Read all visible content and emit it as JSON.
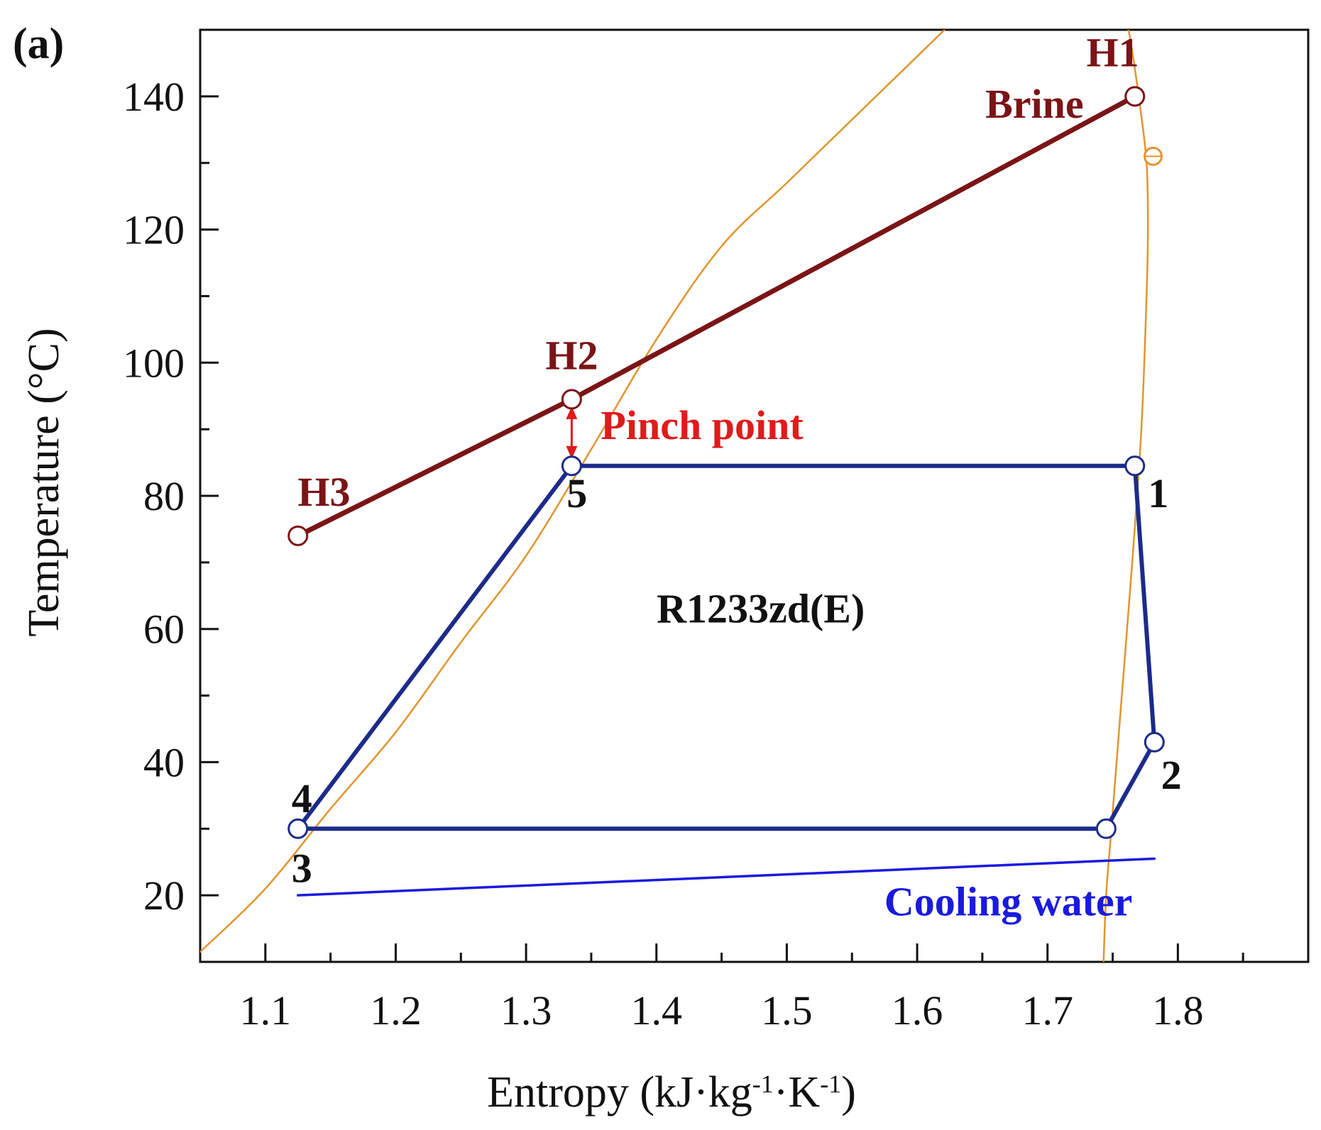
{
  "chart_data": {
    "type": "line",
    "panel_label": "(a)",
    "xlabel": "Entropy (kJ·kg-1·K-1)",
    "xlabel_parts": {
      "prefix": "Entropy (kJ·kg",
      "exp1": "-1",
      "mid": "·K",
      "exp2": "-1",
      "suffix": ")"
    },
    "ylabel": "Temperature (°C)",
    "xlim": [
      1.05,
      1.9
    ],
    "ylim": [
      10,
      150
    ],
    "xticks": [
      1.1,
      1.2,
      1.3,
      1.4,
      1.5,
      1.6,
      1.7,
      1.8
    ],
    "xtick_labels": [
      "1.1",
      "1.2",
      "1.3",
      "1.4",
      "1.5",
      "1.6",
      "1.7",
      "1.8"
    ],
    "xminor": [
      1.15,
      1.25,
      1.35,
      1.45,
      1.55,
      1.65,
      1.75,
      1.85
    ],
    "yticks": [
      20,
      40,
      60,
      80,
      100,
      120,
      140
    ],
    "ytick_labels": [
      "20",
      "40",
      "60",
      "80",
      "100",
      "120",
      "140"
    ],
    "yminor": [
      30,
      50,
      70,
      90,
      110,
      130
    ],
    "series": [
      {
        "name": "saturation-liquid",
        "color": "#e0952f",
        "points": [
          [
            1.05,
            11.5
          ],
          [
            1.1,
            21
          ],
          [
            1.15,
            33
          ],
          [
            1.2,
            44.5
          ],
          [
            1.25,
            58
          ],
          [
            1.3,
            71
          ],
          [
            1.35,
            87
          ],
          [
            1.4,
            103.5
          ],
          [
            1.45,
            117.5
          ],
          [
            1.5,
            127
          ],
          [
            1.55,
            136.5
          ],
          [
            1.6,
            146
          ],
          [
            1.621,
            150
          ]
        ]
      },
      {
        "name": "saturation-vapor",
        "color": "#e0952f",
        "points": [
          [
            1.743,
            10
          ],
          [
            1.745,
            20
          ],
          [
            1.749,
            30
          ],
          [
            1.757,
            50
          ],
          [
            1.765,
            70
          ],
          [
            1.772,
            90
          ],
          [
            1.776,
            110
          ],
          [
            1.777,
            120
          ],
          [
            1.776,
            130
          ],
          [
            1.77,
            140
          ],
          [
            1.764,
            148
          ],
          [
            1.762,
            150
          ]
        ]
      },
      {
        "name": "Brine",
        "color": "#7b1416",
        "points": [
          [
            1.125,
            74
          ],
          [
            1.335,
            94.5
          ],
          [
            1.767,
            140
          ]
        ]
      },
      {
        "name": "R1233zd(E)",
        "color": "#1c2b8a",
        "points": [
          [
            1.767,
            84.5
          ],
          [
            1.335,
            84.5
          ],
          [
            1.125,
            30
          ],
          [
            1.745,
            30
          ],
          [
            1.782,
            43
          ],
          [
            1.767,
            84.5
          ]
        ]
      },
      {
        "name": "Cooling water",
        "color": "#1a1adf",
        "points": [
          [
            1.125,
            20
          ],
          [
            1.782,
            25.5
          ]
        ]
      }
    ],
    "markers": [
      {
        "name": "H1",
        "x": 1.767,
        "y": 140,
        "color": "#7b1416"
      },
      {
        "name": "H2",
        "x": 1.335,
        "y": 94.5,
        "color": "#7b1416"
      },
      {
        "name": "H3",
        "x": 1.125,
        "y": 74,
        "color": "#7b1416"
      },
      {
        "name": "1",
        "x": 1.767,
        "y": 84.5,
        "color": "#1c2b8a"
      },
      {
        "name": "2",
        "x": 1.782,
        "y": 43,
        "color": "#1c2b8a"
      },
      {
        "name": "3-4",
        "x": 1.125,
        "y": 30,
        "color": "#1c2b8a"
      },
      {
        "name": "5",
        "x": 1.335,
        "y": 84.5,
        "color": "#1c2b8a"
      },
      {
        "name": "vapor-start",
        "x": 1.745,
        "y": 30,
        "color": "#1c2b8a"
      },
      {
        "name": "critical-point",
        "x": 1.781,
        "y": 131,
        "color": "#e0952f"
      }
    ],
    "annotations": [
      {
        "text": "H1",
        "x": 1.75,
        "y": 144.5,
        "color": "#7b1416"
      },
      {
        "text": "Brine",
        "x": 1.69,
        "y": 136.8,
        "color": "#7b1416"
      },
      {
        "text": "H2",
        "x": 1.335,
        "y": 99,
        "color": "#7b1416"
      },
      {
        "text": "Pinch point",
        "x": 1.435,
        "y": 88.5,
        "color": "#e01b1b"
      },
      {
        "text": "H3",
        "x": 1.145,
        "y": 78.5,
        "color": "#7b1416"
      },
      {
        "text": "5",
        "x": 1.339,
        "y": 78.3,
        "color": "#111111"
      },
      {
        "text": "1",
        "x": 1.785,
        "y": 78.3,
        "color": "#111111"
      },
      {
        "text": "R1233zd(E)",
        "x": 1.48,
        "y": 61,
        "color": "#111111"
      },
      {
        "text": "2",
        "x": 1.795,
        "y": 36,
        "color": "#111111"
      },
      {
        "text": "4",
        "x": 1.128,
        "y": 32.5,
        "color": "#111111"
      },
      {
        "text": "3",
        "x": 1.128,
        "y": 22,
        "color": "#111111"
      },
      {
        "text": "Cooling water",
        "x": 1.67,
        "y": 17,
        "color": "#1a1adf"
      }
    ],
    "pinch": {
      "x": 1.335,
      "y1": 94.5,
      "y2": 84.5,
      "color": "#e01b1b"
    }
  }
}
